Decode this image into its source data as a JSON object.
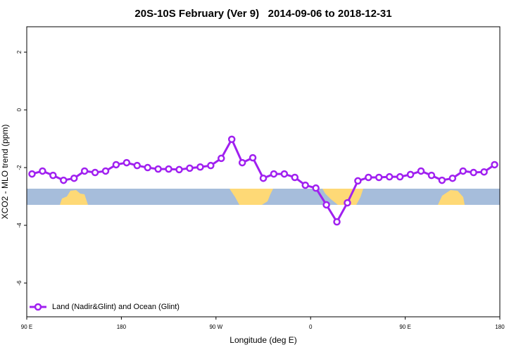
{
  "chart_data": {
    "type": "line",
    "title": "20S-10S February (Ver 9)   2014-09-06 to 2018-12-31",
    "x_label": "Longitude (deg E)",
    "y_label": "XCO2 - MLO trend (ppm)",
    "x": [
      95,
      105,
      115,
      125,
      135,
      145,
      155,
      165,
      175,
      185,
      195,
      205,
      215,
      225,
      235,
      245,
      255,
      265,
      275,
      285,
      295,
      305,
      315,
      325,
      335,
      345,
      355,
      365,
      375,
      385,
      395,
      405,
      415,
      425,
      435,
      445,
      455,
      465,
      475,
      485,
      495,
      505,
      515,
      525,
      535
    ],
    "series": [
      {
        "name": "Land (Nadir&Glint) and Ocean (Glint)",
        "color": "#a020f0",
        "values": [
          -2.22,
          -2.12,
          -2.27,
          -2.44,
          -2.37,
          -2.12,
          -2.17,
          -2.12,
          -1.9,
          -1.83,
          -1.93,
          -2.0,
          -2.05,
          -2.05,
          -2.07,
          -2.02,
          -1.98,
          -1.93,
          -1.68,
          -1.02,
          -1.83,
          -1.66,
          -2.37,
          -2.22,
          -2.22,
          -2.34,
          -2.61,
          -2.71,
          -3.29,
          -3.88,
          -3.22,
          -2.46,
          -2.34,
          -2.34,
          -2.32,
          -2.32,
          -2.24,
          -2.12,
          -2.27,
          -2.44,
          -2.37,
          -2.12,
          -2.17,
          -2.15,
          -1.9
        ]
      }
    ],
    "xlim": [
      90,
      540
    ],
    "xticks": [
      {
        "value": 90,
        "label": "90 E"
      },
      180,
      {
        "value": 270,
        "label": "90 W"
      },
      {
        "value": 360,
        "label": "0"
      },
      {
        "value": 450,
        "label": "90 E"
      },
      {
        "value": 540,
        "label": "180"
      }
    ],
    "ylim": [
      -7.17,
      2.88
    ],
    "yticks": [
      2,
      0,
      -2,
      -4,
      -6
    ],
    "legend": "bottom-left"
  }
}
